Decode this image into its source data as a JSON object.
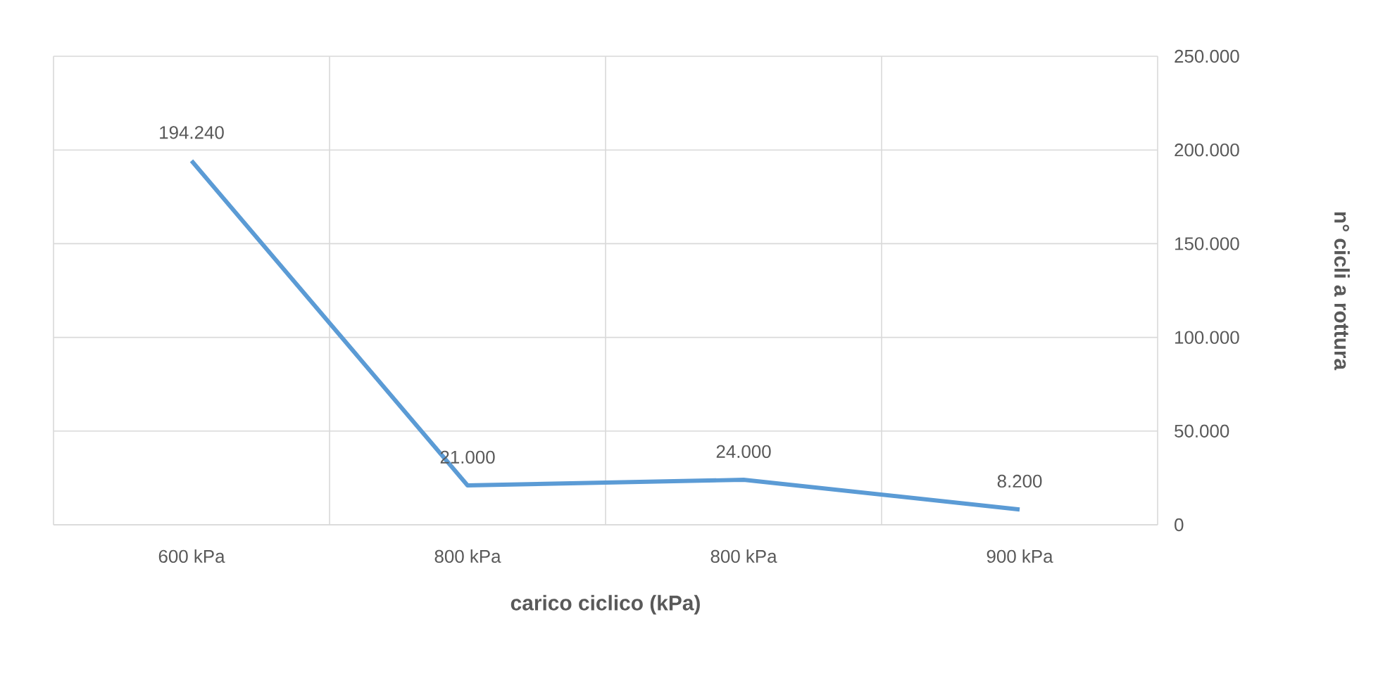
{
  "chart_data": {
    "type": "line",
    "xlabel": "carico ciclico (kPa)",
    "ylabel": "n° cicli a rottura",
    "categories": [
      "600 kPa",
      "800 kPa",
      "800 kPa",
      "900 kPa"
    ],
    "series": [
      {
        "color": "#5b9bd5",
        "values": [
          194240,
          21000,
          24000,
          8200
        ],
        "value_labels": [
          "194.240",
          "21.000",
          "24.000",
          "8.200"
        ]
      }
    ],
    "ylim": [
      0,
      250000
    ],
    "yticks": [
      0,
      {
        "value": 50000,
        "label": "50.000"
      },
      {
        "value": 100000,
        "label": "100.000"
      },
      {
        "value": 150000,
        "label": "150.000"
      },
      {
        "value": 200000,
        "label": "200.000"
      },
      {
        "value": 250000,
        "label": "250.000"
      }
    ],
    "grid": true,
    "marker": "none",
    "line_style": "solid"
  }
}
